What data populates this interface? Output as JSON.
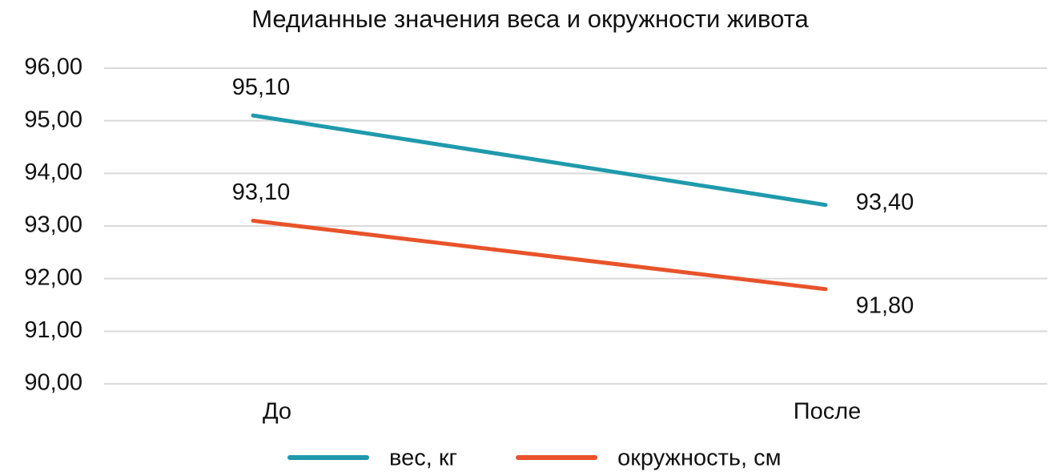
{
  "chart_data": {
    "type": "line",
    "title": "Медианные значения веса и окружности живота",
    "categories": [
      "До",
      "После"
    ],
    "series": [
      {
        "name": "вес, кг",
        "color": "#1f9aac",
        "values": [
          95.1,
          93.4
        ],
        "value_labels": [
          "95,10",
          "93,40"
        ]
      },
      {
        "name": "окружность, см",
        "color": "#e8532a",
        "values": [
          93.1,
          91.8
        ],
        "value_labels": [
          "93,10",
          "91,80"
        ]
      }
    ],
    "ylim": [
      90,
      96
    ],
    "yticks": [
      {
        "value": 90,
        "label": "90,00"
      },
      {
        "value": 91,
        "label": "91,00"
      },
      {
        "value": 92,
        "label": "92,00"
      },
      {
        "value": 93,
        "label": "93,00"
      },
      {
        "value": 94,
        "label": "94,00"
      },
      {
        "value": 95,
        "label": "95,00"
      },
      {
        "value": 96,
        "label": "96,00"
      }
    ],
    "grid": true
  }
}
